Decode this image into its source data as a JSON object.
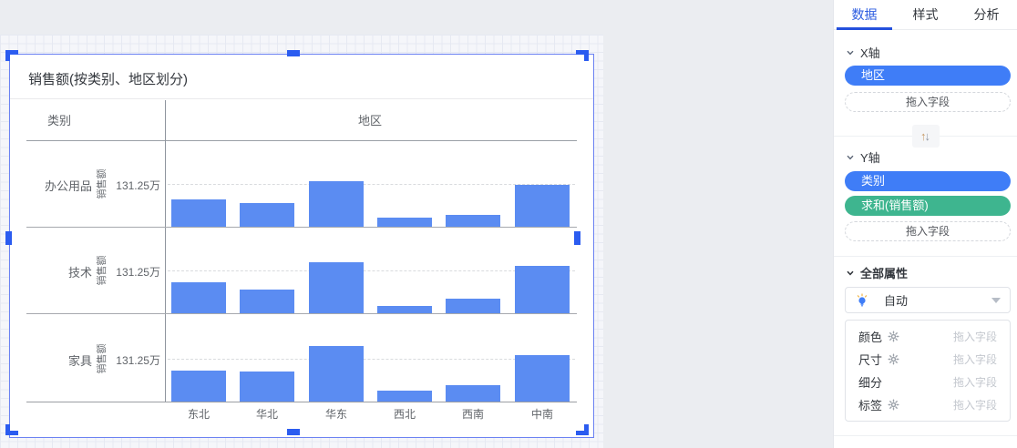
{
  "chart": {
    "title": "销售额(按类别、地区划分)",
    "row_header": "类别",
    "col_header": "地区",
    "value_axis_label": "销售额",
    "tick_label": "131.25万"
  },
  "chart_data": {
    "type": "bar",
    "title": "销售额(按类别、地区划分)",
    "categories": [
      "东北",
      "华北",
      "华东",
      "西北",
      "西南",
      "中南"
    ],
    "series": [
      {
        "name": "办公用品",
        "values": [
          83,
          72,
          139,
          29,
          35,
          128
        ]
      },
      {
        "name": "技术",
        "values": [
          94,
          74,
          156,
          21,
          44,
          144
        ]
      },
      {
        "name": "家具",
        "values": [
          95,
          92,
          171,
          34,
          50,
          142
        ]
      }
    ],
    "unit": "万",
    "ylabel": "销售额",
    "xlabel": "地区",
    "gridline_value": 131.25,
    "grid": "dashed-single-line",
    "legend_position": "none",
    "bar_color": "#5b8cf2"
  },
  "panel": {
    "tabs": [
      {
        "label": "数据",
        "active": true
      },
      {
        "label": "样式",
        "active": false
      },
      {
        "label": "分析",
        "active": false
      }
    ],
    "x_axis": {
      "title": "X轴",
      "pills": [
        {
          "label": "地区",
          "color": "blue"
        }
      ],
      "drop_placeholder": "拖入字段"
    },
    "swap_icon_glyphs": {
      "up": "↑",
      "down": "↓"
    },
    "y_axis": {
      "title": "Y轴",
      "pills": [
        {
          "label": "类别",
          "color": "blue"
        },
        {
          "label": "求和(销售额)",
          "color": "green"
        }
      ],
      "drop_placeholder": "拖入字段"
    },
    "properties": {
      "title": "全部属性",
      "mode": {
        "label": "自动",
        "icon": "lightbulb-icon"
      },
      "rows": [
        {
          "label": "颜色",
          "has_gear": true,
          "placeholder": "拖入字段"
        },
        {
          "label": "尺寸",
          "has_gear": true,
          "placeholder": "拖入字段"
        },
        {
          "label": "细分",
          "has_gear": false,
          "placeholder": "拖入字段"
        },
        {
          "label": "标签",
          "has_gear": true,
          "placeholder": "拖入字段"
        }
      ]
    }
  },
  "colors": {
    "bar": "#5b8cf2",
    "pill_blue": "#3f7df7",
    "pill_green": "#3eb58f",
    "tab_active": "#2b5be0",
    "selection": "#2b5cf0",
    "card_border": "#6b82f2"
  }
}
